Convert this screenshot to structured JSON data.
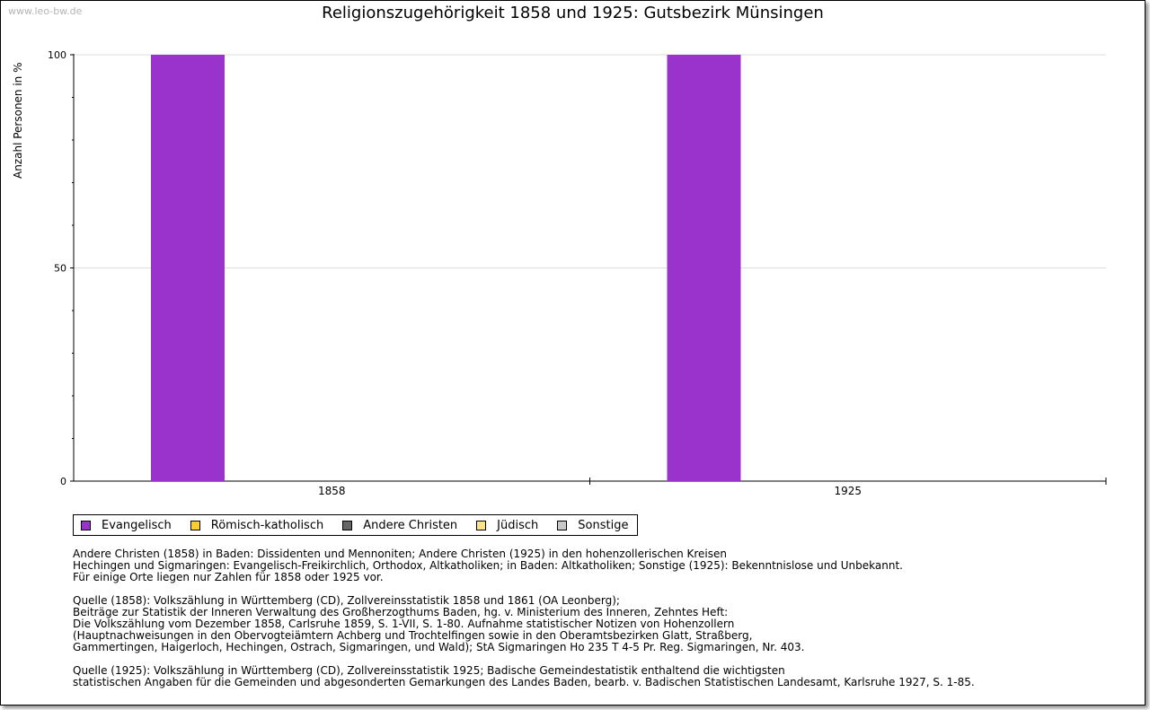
{
  "watermark": "www.leo-bw.de",
  "chart_data": {
    "type": "bar",
    "title": "Religionszugehörigkeit 1858 und 1925: Gutsbezirk Münsingen",
    "xlabel": "",
    "ylabel": "Anzahl Personen in %",
    "ylim": [
      0,
      100
    ],
    "yticks": [
      0,
      50,
      100
    ],
    "grid": true,
    "legend_position": "bottom-left",
    "categories": [
      "1858",
      "1925"
    ],
    "series": [
      {
        "name": "Evangelisch",
        "color": "#9933cc",
        "values": [
          100,
          100
        ]
      },
      {
        "name": "Römisch-katholisch",
        "color": "#ffcc33",
        "values": [
          0,
          0
        ]
      },
      {
        "name": "Andere Christen",
        "color": "#666666",
        "values": [
          0,
          0
        ]
      },
      {
        "name": "Jüdisch",
        "color": "#ffe38a",
        "values": [
          0,
          0
        ]
      },
      {
        "name": "Sonstige",
        "color": "#c8c8c8",
        "values": [
          0,
          0
        ]
      }
    ]
  },
  "notes": [
    "Andere Christen (1858) in Baden: Dissidenten und Mennoniten; Andere Christen (1925) in den hohenzollerischen Kreisen\nHechingen und Sigmaringen: Evangelisch-Freikirchlich, Orthodox, Altkatholiken; in Baden: Altkatholiken; Sonstige (1925): Bekenntnislose und Unbekannt.\nFür einige Orte liegen nur Zahlen für 1858 oder 1925 vor.",
    "Quelle (1858): Volkszählung in Württemberg (CD), Zollvereinsstatistik 1858 und 1861 (OA Leonberg);\nBeiträge zur Statistik der Inneren Verwaltung des Großherzogthums Baden, hg. v. Ministerium des Inneren, Zehntes Heft:\nDie Volkszählung vom Dezember 1858, Carlsruhe 1859, S. 1-VII, S. 1-80. Aufnahme statistischer Notizen von Hohenzollern\n(Hauptnachweisungen in den Obervogteiämtern Achberg und Trochtelfingen sowie in den Oberamtsbezirken Glatt, Straßberg,\nGammertingen, Haigerloch, Hechingen, Ostrach, Sigmaringen, und Wald); StA Sigmaringen Ho 235 T 4-5 Pr. Reg. Sigmaringen, Nr. 403.",
    "Quelle (1925): Volkszählung in Württemberg (CD), Zollvereinsstatistik 1925; Badische Gemeindestatistik enthaltend die wichtigsten\nstatistischen Angaben für die Gemeinden und abgesonderten Gemarkungen des Landes Baden, bearb. v. Badischen Statistischen Landesamt, Karlsruhe 1927, S. 1-85."
  ]
}
